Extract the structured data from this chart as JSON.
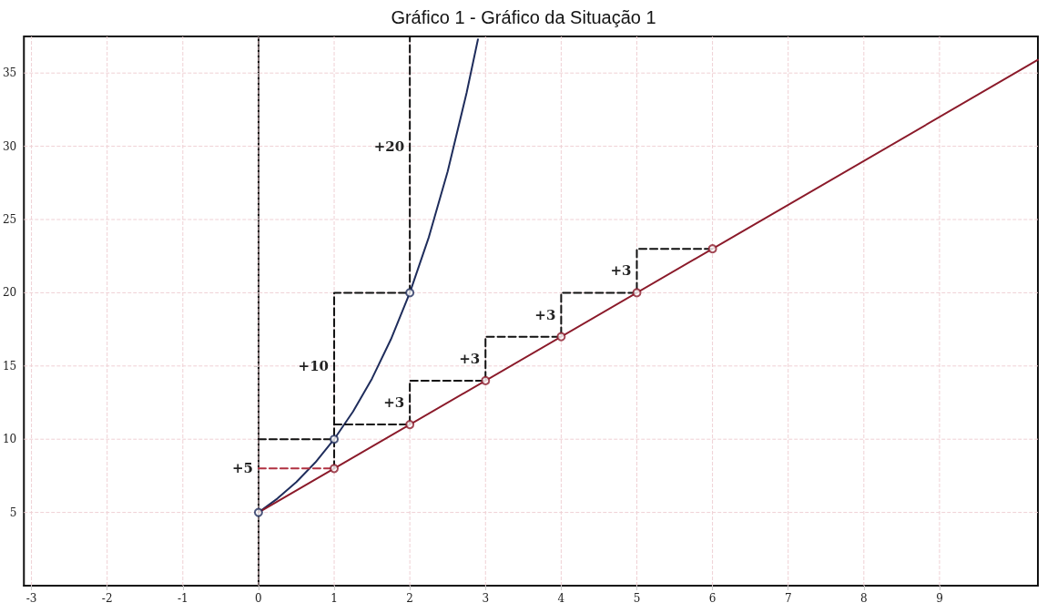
{
  "chart_data": {
    "type": "line",
    "title": "Gráfico 1 - Gráfico da Situação 1",
    "xlim": [
      -3.1,
      10.3
    ],
    "ylim": [
      0,
      37.5
    ],
    "xticks": [
      -3,
      -2,
      -1,
      0,
      1,
      2,
      3,
      4,
      5,
      6,
      7,
      8,
      9
    ],
    "yticks": [
      5,
      10,
      15,
      20,
      25,
      30,
      35
    ],
    "grid": true,
    "series": [
      {
        "color": "#1f2d5c",
        "marker": "none",
        "line_style": "solid",
        "x": [
          0,
          0.25,
          0.5,
          0.75,
          1,
          1.25,
          1.5,
          1.75,
          2,
          2.25,
          2.5,
          2.75,
          2.9
        ],
        "values": [
          5,
          5.95,
          7.07,
          8.41,
          10,
          11.89,
          14.14,
          16.82,
          20,
          23.78,
          28.28,
          33.64,
          37.3
        ]
      },
      {
        "color": "#8b1a2a",
        "marker": "none",
        "line_style": "solid",
        "x": [
          0,
          10.3
        ],
        "values": [
          5,
          35.9
        ]
      },
      {
        "type": "scatter",
        "color": "#1f2d5c",
        "marker": "circle",
        "x": [
          0,
          1,
          2
        ],
        "values": [
          5,
          10,
          20
        ]
      },
      {
        "type": "scatter",
        "color": "#8b1a2a",
        "marker": "circle",
        "x": [
          1,
          2,
          3,
          4,
          5,
          6
        ],
        "values": [
          8,
          11,
          14,
          17,
          20,
          23
        ]
      },
      {
        "color": "#111111",
        "marker": "none",
        "line_style": "dashed",
        "x": [
          0,
          1,
          null,
          1,
          1,
          2,
          2
        ],
        "values": [
          10,
          10,
          null,
          8,
          20,
          20,
          37.5
        ]
      },
      {
        "color": "#111111",
        "marker": "none",
        "line_style": "dashed",
        "x": [
          1,
          2,
          2,
          3,
          3,
          4,
          4,
          5,
          5,
          6
        ],
        "values": [
          11,
          11,
          14,
          14,
          17,
          17,
          20,
          20,
          23,
          23
        ]
      },
      {
        "color": "#b03040",
        "marker": "none",
        "line_style": "dashed",
        "x": [
          0,
          1
        ],
        "values": [
          8,
          8
        ]
      }
    ],
    "annotations": [
      {
        "text": "+20",
        "x": 2,
        "y": 30
      },
      {
        "text": "+10",
        "x": 1,
        "y": 15
      },
      {
        "text": "+5",
        "x": 0,
        "y": 8
      },
      {
        "text": "+3",
        "x": 2,
        "y": 12.5
      },
      {
        "text": "+3",
        "x": 3,
        "y": 15.5
      },
      {
        "text": "+3",
        "x": 4,
        "y": 18.5
      },
      {
        "text": "+3",
        "x": 5,
        "y": 21.5
      }
    ]
  }
}
